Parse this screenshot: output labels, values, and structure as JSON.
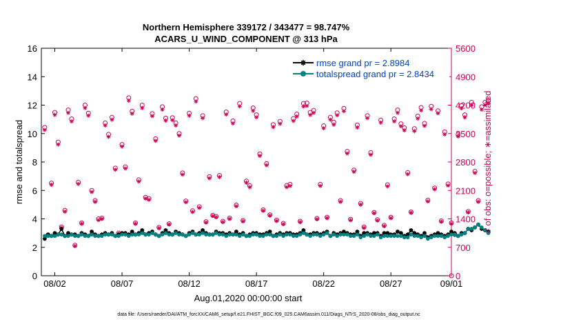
{
  "chart_data": {
    "type": "line",
    "title_line1": "Northern Hemisphere 339172 / 343477 = 98.747%",
    "title_line2": "ACARS_U_WIND_COMPONENT @ 313 hPa",
    "xlabel": "Aug.01,2020 00:00:00 start",
    "ylabel_left": "rmse and totalspread",
    "ylabel_right": "# of obs: o=possible; ∗=assimilated",
    "footer": "data file: /Users/raeder/DAI/ATM_forcXX/CAM6_setup/f.e21.FHIST_BGC.f09_025.CAM6assim.011/Diags_NTrS_2020-08/obs_diag_output.nc",
    "xlim": [
      0.5,
      31.0
    ],
    "ylim_left": [
      0,
      16
    ],
    "ylim_right": [
      0,
      5600
    ],
    "x_ticks": [
      {
        "value": 1.5,
        "label": "08/02"
      },
      {
        "value": 6.5,
        "label": "08/07"
      },
      {
        "value": 11.5,
        "label": "08/12"
      },
      {
        "value": 16.5,
        "label": "08/17"
      },
      {
        "value": 21.5,
        "label": "08/22"
      },
      {
        "value": 26.5,
        "label": "08/27"
      },
      {
        "value": 31.0,
        "label": "09/01"
      }
    ],
    "y_ticks_left": [
      "0",
      "2",
      "4",
      "6",
      "8",
      "10",
      "12",
      "14",
      "16"
    ],
    "y_ticks_right": [
      "0",
      "700",
      "1400",
      "2100",
      "2800",
      "3500",
      "4200",
      "4900",
      "5600"
    ],
    "series": [
      {
        "name": "rmse grand pr = 2.8984",
        "color": "#000000",
        "marker": "asterisk",
        "time_step_days": 0.25,
        "start_day": 0.75,
        "values": [
          2.6,
          2.9,
          2.8,
          3.0,
          2.9,
          3.3,
          2.8,
          3.0,
          2.9,
          2.9,
          2.8,
          3.0,
          2.9,
          2.8,
          3.1,
          2.9,
          2.8,
          2.9,
          3.0,
          2.9,
          3.0,
          2.8,
          2.9,
          3.0,
          3.0,
          2.9,
          3.1,
          2.9,
          3.0,
          3.2,
          2.9,
          3.0,
          3.1,
          2.9,
          2.8,
          3.0,
          3.2,
          3.0,
          2.9,
          3.1,
          3.0,
          2.9,
          2.8,
          3.0,
          3.1,
          2.9,
          3.0,
          3.2,
          3.0,
          2.9,
          2.9,
          3.1,
          3.0,
          3.0,
          2.9,
          3.0,
          2.9,
          3.1,
          2.9,
          3.0,
          2.8,
          2.9,
          3.0,
          3.0,
          2.9,
          2.9,
          3.0,
          3.1,
          2.8,
          2.9,
          3.0,
          2.9,
          3.0,
          3.0,
          2.9,
          2.9,
          3.0,
          3.2,
          2.9,
          2.9,
          3.0,
          3.0,
          2.9,
          3.0,
          3.1,
          2.8,
          3.0,
          2.9,
          3.0,
          3.1,
          3.0,
          2.9,
          2.9,
          3.1,
          2.8,
          3.0,
          3.0,
          2.9,
          3.0,
          3.0,
          2.8,
          3.0,
          3.0,
          2.9,
          2.9,
          3.1,
          3.0,
          2.8,
          2.9,
          3.2,
          3.0,
          2.9,
          2.8,
          3.0,
          2.7,
          2.8,
          2.9,
          3.0,
          2.9,
          2.8,
          2.9,
          3.1,
          3.0,
          2.8,
          3.0,
          3.0,
          3.3,
          3.2,
          3.4,
          3.6,
          3.3,
          3.2,
          3.1
        ]
      },
      {
        "name": "totalspread grand pr = 2.8434",
        "color": "#008080",
        "marker": "circle",
        "time_step_days": 0.25,
        "start_day": 0.75,
        "values": [
          2.8,
          2.8,
          2.8,
          2.8,
          2.9,
          2.9,
          2.8,
          2.8,
          2.9,
          2.8,
          2.8,
          2.9,
          2.8,
          2.8,
          2.9,
          2.8,
          2.8,
          2.8,
          2.9,
          2.9,
          2.9,
          2.8,
          2.8,
          2.9,
          2.9,
          2.8,
          2.9,
          2.9,
          2.9,
          3.0,
          2.9,
          2.9,
          3.0,
          2.9,
          2.8,
          2.9,
          3.0,
          2.9,
          2.9,
          3.0,
          2.9,
          2.9,
          2.8,
          2.9,
          3.0,
          2.9,
          2.9,
          3.0,
          2.9,
          2.9,
          2.9,
          3.0,
          2.9,
          2.9,
          2.8,
          2.9,
          2.9,
          2.9,
          2.8,
          2.9,
          2.8,
          2.8,
          2.9,
          2.9,
          2.8,
          2.8,
          2.9,
          2.9,
          2.8,
          2.8,
          2.9,
          2.8,
          2.9,
          2.9,
          2.8,
          2.8,
          2.9,
          3.0,
          2.9,
          2.8,
          2.9,
          2.9,
          2.8,
          2.9,
          3.0,
          2.8,
          2.9,
          2.8,
          2.9,
          2.9,
          2.9,
          2.8,
          2.8,
          2.9,
          2.7,
          2.8,
          2.9,
          2.8,
          2.8,
          2.9,
          2.7,
          2.8,
          2.8,
          2.8,
          2.8,
          2.8,
          2.8,
          2.7,
          2.7,
          2.9,
          2.8,
          2.8,
          2.7,
          2.8,
          2.6,
          2.7,
          2.8,
          2.8,
          2.8,
          2.7,
          2.8,
          2.9,
          2.9,
          2.8,
          2.9,
          3.0,
          3.3,
          3.3,
          3.4,
          3.6,
          3.4,
          3.2,
          3.0
        ]
      },
      {
        "name": "possible",
        "axis": "right",
        "color": "#cc0055",
        "marker": "circle-open",
        "time_step_days": 0.25,
        "start_day": 0.75,
        "values": [
          3650,
          1000,
          2280,
          4020,
          3290,
          1200,
          1610,
          4080,
          3860,
          750,
          2300,
          1300,
          4200,
          4000,
          2100,
          1850,
          1400,
          1420,
          3760,
          3480,
          3900,
          2650,
          1050,
          3230,
          2680,
          4380,
          4050,
          1300,
          2360,
          4200,
          1930,
          1900,
          3990,
          3370,
          1190,
          4160,
          3880,
          1280,
          3890,
          3760,
          3500,
          2530,
          1840,
          4000,
          1600,
          4360,
          1700,
          3940,
          1330,
          2440,
          1490,
          1460,
          2470,
          1340,
          4030,
          1420,
          3810,
          1740,
          4240,
          1360,
          2330,
          2220,
          4130,
          3960,
          3000,
          1620,
          2760,
          1500,
          3720,
          1370,
          3800,
          1290,
          2220,
          2250,
          3870,
          3980,
          1340,
          4240,
          4250,
          4020,
          4070,
          1410,
          2250,
          3690,
          1440,
          3900,
          3780,
          4010,
          1850,
          4120,
          3060,
          1390,
          2600,
          3710,
          1780,
          1200,
          3940,
          3030,
          1560,
          1380,
          3830,
          1240,
          2240,
          1440,
          3860,
          4080,
          3740,
          3640,
          2540,
          1570,
          3620,
          3930,
          4140,
          3750,
          1860,
          4170,
          2160,
          4060,
          1350,
          3540,
          2260,
          1300,
          1020,
          3480,
          4190,
          3960,
          1580,
          4270,
          2570,
          1850,
          4160,
          4270,
          4320
        ]
      },
      {
        "name": "assimilated",
        "axis": "right",
        "color": "#cc0055",
        "marker": "asterisk",
        "time_step_days": 0.25,
        "start_day": 0.75,
        "values": [
          3590,
          980,
          2240,
          3960,
          3230,
          1180,
          1580,
          4010,
          3800,
          730,
          2260,
          1280,
          4130,
          3940,
          2060,
          1820,
          1370,
          1400,
          3700,
          3420,
          3840,
          2610,
          1030,
          3180,
          2640,
          4310,
          3990,
          1280,
          2320,
          4130,
          1900,
          1870,
          3930,
          3320,
          1170,
          4090,
          3820,
          1260,
          3830,
          3700,
          3450,
          2490,
          1810,
          3940,
          1570,
          4290,
          1670,
          3880,
          1310,
          2400,
          1470,
          1440,
          2430,
          1320,
          3970,
          1400,
          3750,
          1710,
          4170,
          1340,
          2290,
          2180,
          4060,
          3900,
          2950,
          1600,
          2720,
          1480,
          3660,
          1350,
          3740,
          1270,
          2180,
          2210,
          3810,
          3920,
          1320,
          4170,
          4180,
          3960,
          4010,
          1390,
          2210,
          3630,
          1420,
          3840,
          3720,
          3950,
          1820,
          4050,
          3010,
          1370,
          2560,
          3650,
          1750,
          1180,
          3880,
          2980,
          1540,
          1360,
          3770,
          1220,
          2200,
          1420,
          3800,
          4010,
          3680,
          3580,
          2500,
          1550,
          3560,
          3870,
          4070,
          3690,
          1830,
          4100,
          2130,
          4000,
          1330,
          3480,
          2220,
          1280,
          1000,
          3430,
          4120,
          3900,
          1560,
          4200,
          2530,
          1820,
          4090,
          4200,
          4250
        ]
      }
    ],
    "legend": [
      {
        "label": "rmse grand pr = 2.8984",
        "color": "#000000",
        "text_color": "#0044cc"
      },
      {
        "label": "totalspread grand pr = 2.8434",
        "color": "#008080",
        "text_color": "#0044cc"
      }
    ],
    "left_axis_color": "#000000",
    "right_axis_color": "#cc0055"
  }
}
